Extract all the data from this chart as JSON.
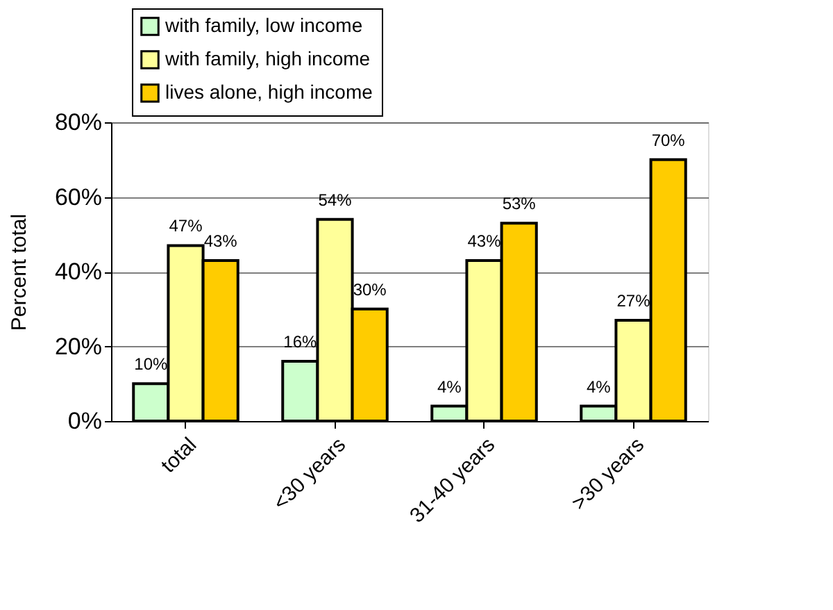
{
  "chart_data": {
    "type": "bar",
    "ylabel": "Percent total",
    "categories": [
      "total",
      "<30 years",
      "31-40 years",
      ">30 years"
    ],
    "series": [
      {
        "name": "with family, low income",
        "color": "#ccffcc",
        "values": [
          10,
          16,
          4,
          4
        ],
        "value_labels": [
          "10%",
          "16%",
          "4%",
          "4%"
        ]
      },
      {
        "name": "with family, high income",
        "color": "#ffff99",
        "values": [
          47,
          54,
          43,
          27
        ],
        "value_labels": [
          "47%",
          "54%",
          "43%",
          "27%"
        ]
      },
      {
        "name": "lives alone, high income",
        "color": "#ffcc00",
        "values": [
          43,
          30,
          53,
          70
        ],
        "value_labels": [
          "43%",
          "30%",
          "53%",
          "70%"
        ]
      }
    ],
    "ylim": [
      0,
      80
    ],
    "yticks": [
      {
        "value": 0,
        "label": "0%"
      },
      {
        "value": 20,
        "label": "20%"
      },
      {
        "value": 40,
        "label": "40%"
      },
      {
        "value": 60,
        "label": "60%"
      },
      {
        "value": 80,
        "label": "80%"
      }
    ],
    "grid": "y",
    "legend": "top left"
  }
}
